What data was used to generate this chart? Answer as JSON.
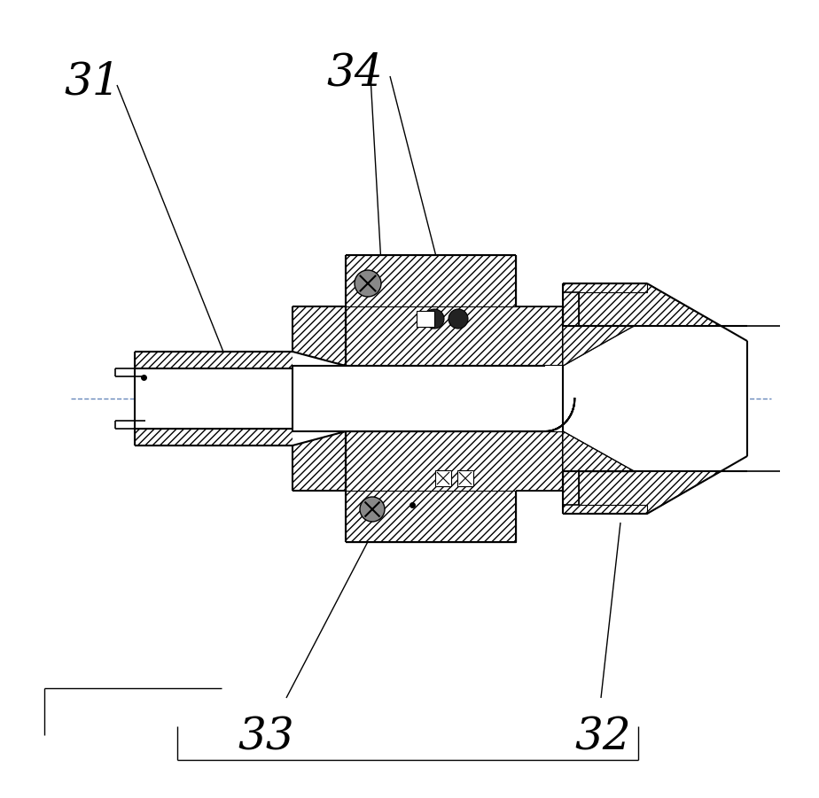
{
  "bg_color": "#ffffff",
  "line_color": "#000000",
  "centerline_color": "#6688bb",
  "fig_width": 9.24,
  "fig_height": 9.01,
  "dpi": 100
}
